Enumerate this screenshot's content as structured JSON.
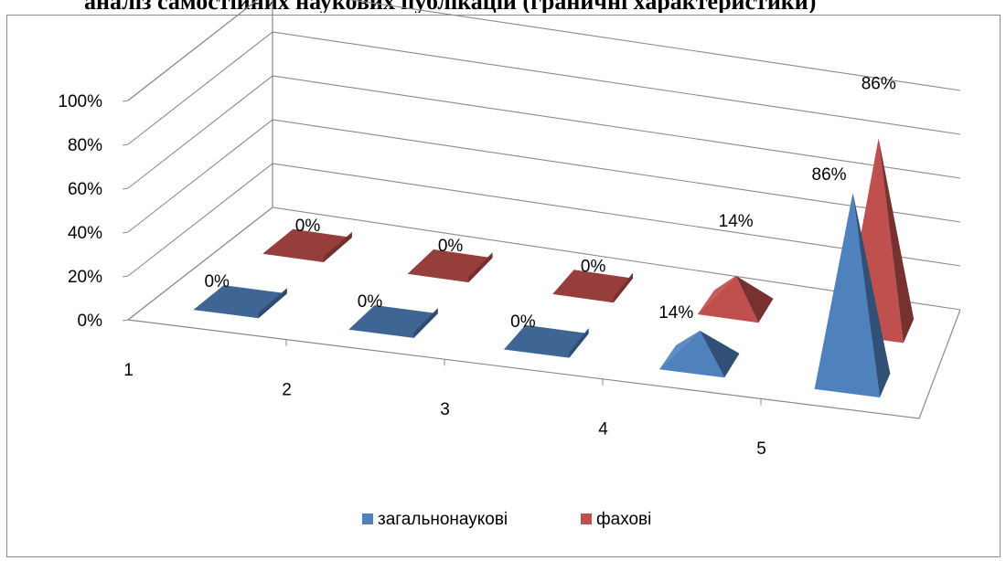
{
  "page_heading": "аналіз самостійних наукових публікацій (граничні характеристики)",
  "chart_data": {
    "type": "bar",
    "bar_shape": "pyramid",
    "view": "3d",
    "categories": [
      "1",
      "2",
      "3",
      "4",
      "5"
    ],
    "series": [
      {
        "name": "загальнонаукові",
        "color": "#4F81BD",
        "values": [
          0,
          0,
          0,
          14,
          86
        ],
        "labels": [
          "0%",
          "0%",
          "0%",
          "14%",
          "86%"
        ]
      },
      {
        "name": "фахові",
        "color": "#C0504D",
        "values": [
          0,
          0,
          0,
          14,
          86
        ],
        "labels": [
          "0%",
          "0%",
          "0%",
          "14%",
          "86%"
        ]
      }
    ],
    "y_ticks": [
      "0%",
      "20%",
      "40%",
      "60%",
      "80%",
      "100%"
    ],
    "ylim": [
      0,
      100
    ],
    "grid": true,
    "legend": "bottom"
  }
}
